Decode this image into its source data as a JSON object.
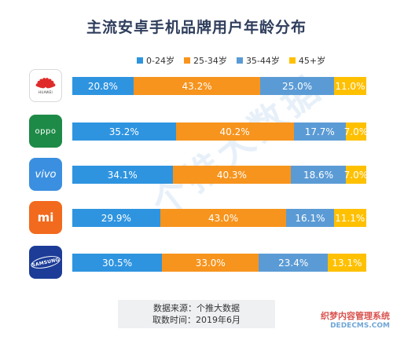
{
  "chart_data": {
    "type": "bar",
    "orientation": "horizontal",
    "stacked": true,
    "title": "主流安卓手机品牌用户年龄分布",
    "categories": [
      "HUAWEI",
      "OPPO",
      "vivo",
      "MI",
      "SAMSUNG"
    ],
    "series": [
      {
        "name": "0-24岁",
        "color": "#2e94e0",
        "values": [
          20.8,
          35.2,
          34.1,
          29.9,
          30.5
        ],
        "labels": [
          "20.8%",
          "35.2%",
          "34.1%",
          "29.9%",
          "30.5%"
        ]
      },
      {
        "name": "25-34岁",
        "color": "#f7941d",
        "values": [
          43.2,
          40.2,
          40.3,
          43.0,
          33.0
        ],
        "labels": [
          "43.2%",
          "40.2%",
          "40.3%",
          "43.0%",
          "33.0%"
        ]
      },
      {
        "name": "35-44岁",
        "color": "#5b9bd5",
        "values": [
          25.0,
          17.7,
          18.6,
          16.1,
          23.4
        ],
        "labels": [
          "25.0%",
          "17.7%",
          "18.6%",
          "16.1%",
          "23.4%"
        ]
      },
      {
        "name": "45+岁",
        "color": "#ffc000",
        "values": [
          11.0,
          7.0,
          7.0,
          11.1,
          13.1
        ],
        "labels": [
          "11.0%",
          "7.0%",
          "7.0%",
          "11.1%",
          "13.1%"
        ]
      }
    ],
    "legend_position": "top",
    "grid": false
  },
  "logos": [
    {
      "brand": "huawei",
      "text": "HUAWEI",
      "icon": "huawei-logo-icon"
    },
    {
      "brand": "oppo",
      "text": "oppo",
      "icon": "oppo-logo-icon"
    },
    {
      "brand": "vivo",
      "text": "vivo",
      "icon": "vivo-logo-icon"
    },
    {
      "brand": "mi",
      "text": "mi",
      "icon": "mi-logo-icon"
    },
    {
      "brand": "samsung",
      "text": "SAMSUNG",
      "icon": "samsung-logo-icon"
    }
  ],
  "watermark": "个推大数据",
  "source": {
    "line1": "数据来源：个推大数据",
    "line2": "取数时间：2019年6月"
  },
  "corner_watermark": {
    "line1": "织梦内容管理系统",
    "line2": "DEDECMS.COM"
  }
}
